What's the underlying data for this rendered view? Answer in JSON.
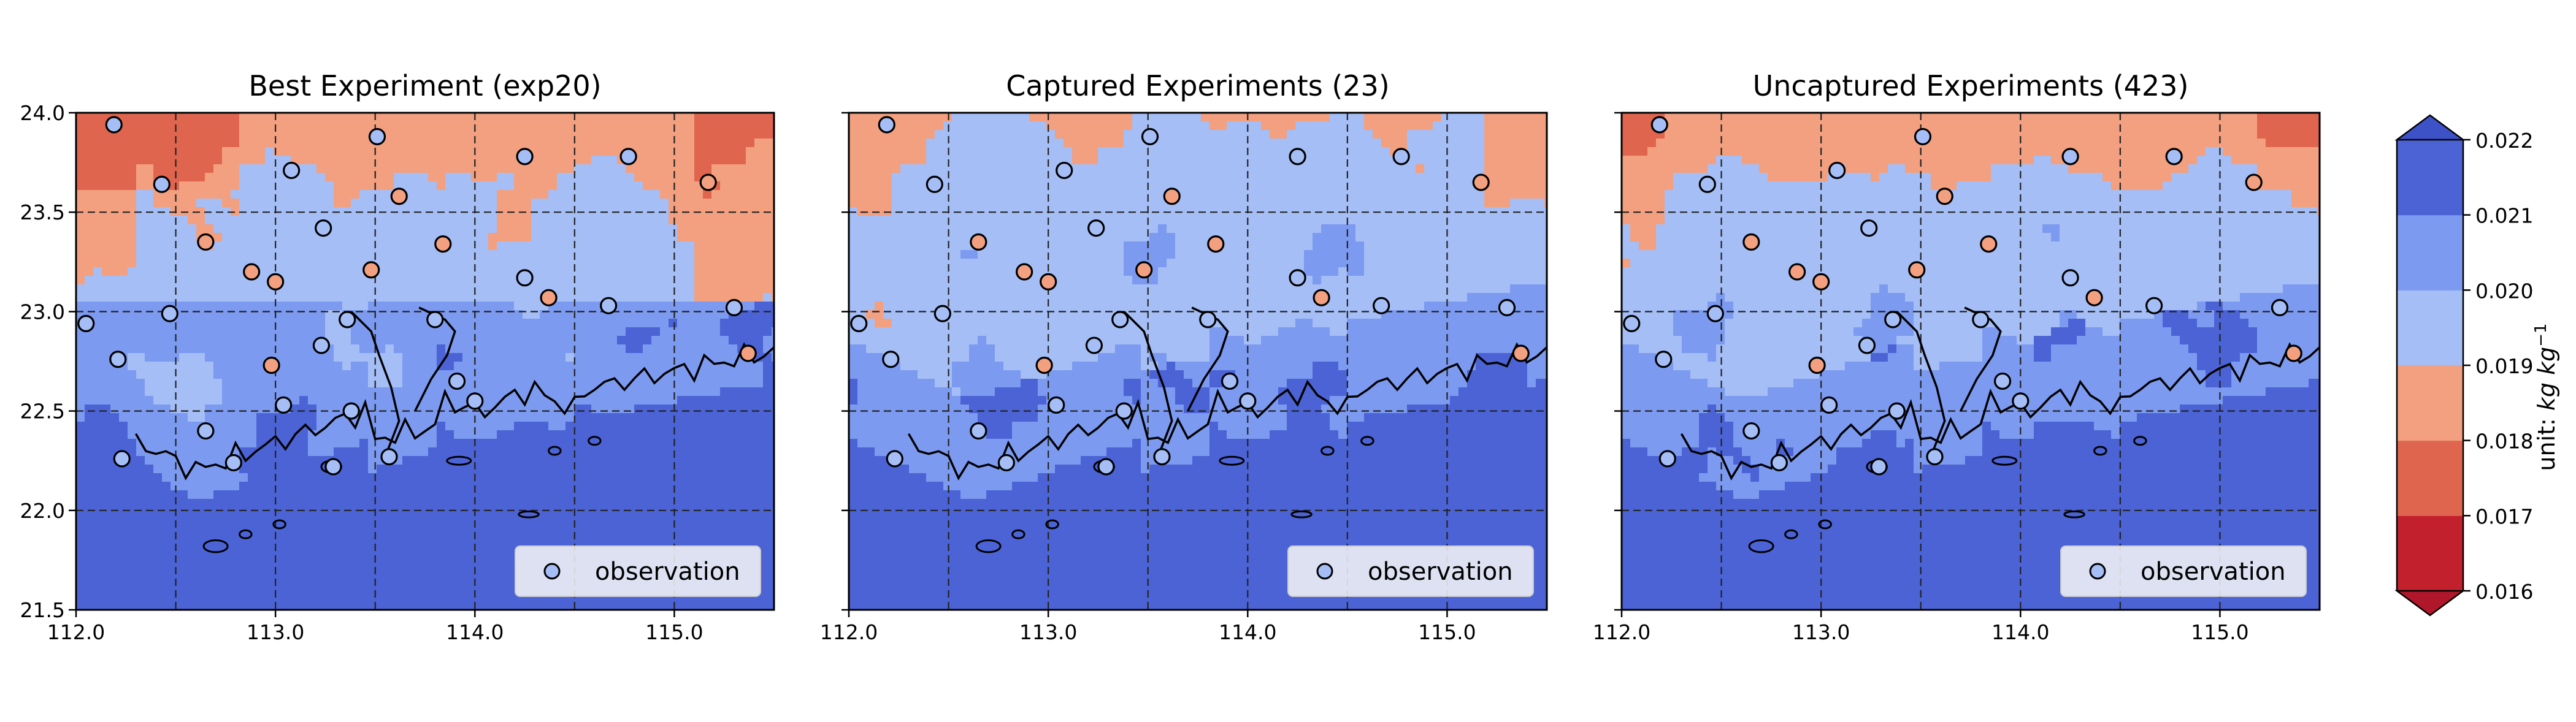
{
  "figure": {
    "colors": {
      "levels": [
        "#c3202e",
        "#e0654f",
        "#f2a07f",
        "#a5bef6",
        "#7c9af0",
        "#4b63d4"
      ],
      "extend_low": "#b0172b",
      "extend_high": "#3e52c8",
      "observation_edge": "#000000",
      "coastline": "#000000"
    }
  },
  "chart_data": [
    {
      "type": "heatmap",
      "title": "Best Experiment (exp20)",
      "xlim": [
        112.0,
        115.5
      ],
      "ylim": [
        21.5,
        24.0
      ],
      "xticks": [
        "112.0",
        "113.0",
        "114.0",
        "115.0"
      ],
      "yticks": [
        "21.5",
        "22.0",
        "22.5",
        "23.0",
        "23.5",
        "24.0"
      ],
      "grid": "dashed, every 0.5 degree",
      "legend": {
        "label": "observation",
        "location": "lower-right"
      },
      "observations": [
        {
          "lon": 112.19,
          "lat": 23.94,
          "value": 0.0195
        },
        {
          "lon": 112.43,
          "lat": 23.64,
          "value": 0.0195
        },
        {
          "lon": 112.65,
          "lat": 23.35,
          "value": 0.0187
        },
        {
          "lon": 112.88,
          "lat": 23.2,
          "value": 0.0187
        },
        {
          "lon": 113.08,
          "lat": 23.71,
          "value": 0.0195
        },
        {
          "lon": 113.24,
          "lat": 23.42,
          "value": 0.0195
        },
        {
          "lon": 113.51,
          "lat": 23.88,
          "value": 0.0195
        },
        {
          "lon": 113.62,
          "lat": 23.58,
          "value": 0.0187
        },
        {
          "lon": 113.84,
          "lat": 23.34,
          "value": 0.0187
        },
        {
          "lon": 114.25,
          "lat": 23.78,
          "value": 0.0195
        },
        {
          "lon": 114.77,
          "lat": 23.78,
          "value": 0.0195
        },
        {
          "lon": 115.17,
          "lat": 23.65,
          "value": 0.0185
        },
        {
          "lon": 112.05,
          "lat": 22.94,
          "value": 0.0195
        },
        {
          "lon": 112.47,
          "lat": 22.99,
          "value": 0.0195
        },
        {
          "lon": 113.0,
          "lat": 23.15,
          "value": 0.0187
        },
        {
          "lon": 113.48,
          "lat": 23.21,
          "value": 0.0187
        },
        {
          "lon": 113.36,
          "lat": 22.96,
          "value": 0.0195
        },
        {
          "lon": 113.23,
          "lat": 22.83,
          "value": 0.0195
        },
        {
          "lon": 113.8,
          "lat": 22.96,
          "value": 0.0195
        },
        {
          "lon": 114.25,
          "lat": 23.17,
          "value": 0.0195
        },
        {
          "lon": 114.37,
          "lat": 23.07,
          "value": 0.0187
        },
        {
          "lon": 114.67,
          "lat": 23.03,
          "value": 0.0195
        },
        {
          "lon": 115.3,
          "lat": 23.02,
          "value": 0.0195
        },
        {
          "lon": 112.21,
          "lat": 22.76,
          "value": 0.0195
        },
        {
          "lon": 112.98,
          "lat": 22.73,
          "value": 0.0187
        },
        {
          "lon": 113.04,
          "lat": 22.53,
          "value": 0.0195
        },
        {
          "lon": 113.38,
          "lat": 22.5,
          "value": 0.0195
        },
        {
          "lon": 113.91,
          "lat": 22.65,
          "value": 0.0195
        },
        {
          "lon": 114.0,
          "lat": 22.55,
          "value": 0.0195
        },
        {
          "lon": 115.37,
          "lat": 22.79,
          "value": 0.0185
        },
        {
          "lon": 112.23,
          "lat": 22.26,
          "value": 0.0195
        },
        {
          "lon": 112.65,
          "lat": 22.4,
          "value": 0.0195
        },
        {
          "lon": 112.79,
          "lat": 22.24,
          "value": 0.0195
        },
        {
          "lon": 113.29,
          "lat": 22.22,
          "value": 0.0195
        },
        {
          "lon": 113.57,
          "lat": 22.27,
          "value": 0.0195
        }
      ]
    },
    {
      "type": "heatmap",
      "title": "Captured Experiments (23)",
      "xlim": [
        112.0,
        115.5
      ],
      "ylim": [
        21.5,
        24.0
      ],
      "xticks": [
        "112.0",
        "113.0",
        "114.0",
        "115.0"
      ],
      "yticks": [
        "21.5",
        "22.0",
        "22.5",
        "23.0",
        "23.5",
        "24.0"
      ],
      "grid": "dashed, every 0.5 degree",
      "legend": {
        "label": "observation",
        "location": "lower-right"
      }
    },
    {
      "type": "heatmap",
      "title": "Uncaptured Experiments (423)",
      "xlim": [
        112.0,
        115.5
      ],
      "ylim": [
        21.5,
        24.0
      ],
      "xticks": [
        "112.0",
        "113.0",
        "114.0",
        "115.0"
      ],
      "yticks": [
        "21.5",
        "22.0",
        "22.5",
        "23.0",
        "23.5",
        "24.0"
      ],
      "grid": "dashed, every 0.5 degree",
      "legend": {
        "label": "observation",
        "location": "lower-right"
      }
    }
  ],
  "colorbar": {
    "ticks": [
      "0.016",
      "0.017",
      "0.018",
      "0.019",
      "0.020",
      "0.021",
      "0.022"
    ],
    "levels": [
      0.016,
      0.017,
      0.018,
      0.019,
      0.02,
      0.021,
      0.022
    ],
    "extend": "both",
    "label_prefix": "unit: ",
    "label_unit": "kg kg",
    "label_exponent": "−1"
  }
}
